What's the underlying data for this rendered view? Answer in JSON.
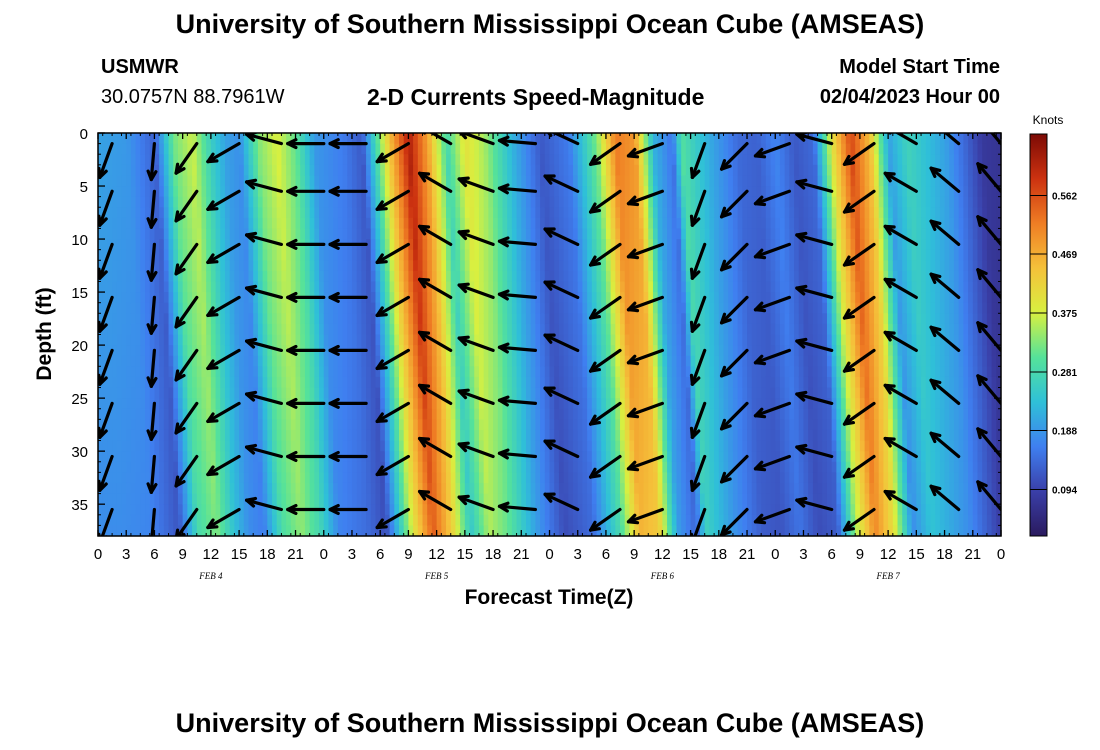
{
  "page": {
    "title_top": "University of Southern Mississippi Ocean Cube (AMSEAS)",
    "title_bottom": "University of Southern Mississippi Ocean Cube (AMSEAS)",
    "station_id": "USMWR",
    "station_coords": "30.0757N  88.7961W",
    "subtitle": "2-D Currents Speed-Magnitude",
    "model_start_label": "Model Start Time",
    "model_start_value": "02/04/2023 Hour 00"
  },
  "colors": {
    "scale": [
      "#2a1a5e",
      "#3a3fa8",
      "#3f7ff0",
      "#2fc0d8",
      "#55e29a",
      "#d8f040",
      "#f5c13a",
      "#ef7d24",
      "#cc3210",
      "#7c0a05"
    ],
    "arrow": "#000000",
    "background": "#ffffff"
  },
  "chart_data": {
    "type": "heatmap",
    "title": "2-D Currents Speed-Magnitude",
    "xlabel": "Forecast Time(Z)",
    "ylabel": "Depth (ft)",
    "x_tick_labels": [
      "0",
      "3",
      "6",
      "9",
      "12",
      "15",
      "18",
      "21",
      "0",
      "3",
      "6",
      "9",
      "12",
      "15",
      "18",
      "21",
      "0",
      "3",
      "6",
      "9",
      "12",
      "15",
      "18",
      "21",
      "0",
      "3",
      "6",
      "9",
      "12",
      "15",
      "18",
      "21",
      "0"
    ],
    "x_range_hours": [
      0,
      96
    ],
    "date_labels": [
      {
        "label": "FEB 4",
        "hour": 12
      },
      {
        "label": "FEB 5",
        "hour": 36
      },
      {
        "label": "FEB 6",
        "hour": 60
      },
      {
        "label": "FEB 7",
        "hour": 84
      }
    ],
    "y_ticks": [
      0,
      5,
      10,
      15,
      20,
      25,
      30,
      35
    ],
    "y_range_ft": [
      0,
      38
    ],
    "colorbar": {
      "label": "Knots",
      "ticks": [
        0.094,
        0.188,
        0.281,
        0.375,
        0.469,
        0.562
      ],
      "range": [
        0.02,
        0.66
      ]
    },
    "speed_by_hour_knots": [
      {
        "hour": 0,
        "speed": 0.2
      },
      {
        "hour": 3,
        "speed": 0.19
      },
      {
        "hour": 6,
        "speed": 0.13
      },
      {
        "hour": 8,
        "speed": 0.32
      },
      {
        "hour": 10,
        "speed": 0.37
      },
      {
        "hour": 12,
        "speed": 0.26
      },
      {
        "hour": 13.5,
        "speed": 0.2
      },
      {
        "hour": 15,
        "speed": 0.18
      },
      {
        "hour": 17,
        "speed": 0.33
      },
      {
        "hour": 19,
        "speed": 0.38
      },
      {
        "hour": 21,
        "speed": 0.31
      },
      {
        "hour": 23,
        "speed": 0.19
      },
      {
        "hour": 26,
        "speed": 0.16
      },
      {
        "hour": 28,
        "speed": 0.12
      },
      {
        "hour": 31,
        "speed": 0.45
      },
      {
        "hour": 33,
        "speed": 0.62
      },
      {
        "hour": 35,
        "speed": 0.48
      },
      {
        "hour": 37,
        "speed": 0.28
      },
      {
        "hour": 39,
        "speed": 0.4
      },
      {
        "hour": 41,
        "speed": 0.35
      },
      {
        "hour": 44,
        "speed": 0.22
      },
      {
        "hour": 47,
        "speed": 0.12
      },
      {
        "hour": 50,
        "speed": 0.16
      },
      {
        "hour": 53,
        "speed": 0.33
      },
      {
        "hour": 55,
        "speed": 0.52
      },
      {
        "hour": 57,
        "speed": 0.49
      },
      {
        "hour": 59,
        "speed": 0.22
      },
      {
        "hour": 61,
        "speed": 0.15
      },
      {
        "hour": 62,
        "speed": 0.3
      },
      {
        "hour": 65,
        "speed": 0.21
      },
      {
        "hour": 68,
        "speed": 0.14
      },
      {
        "hour": 70,
        "speed": 0.13
      },
      {
        "hour": 72,
        "speed": 0.17
      },
      {
        "hour": 74,
        "speed": 0.12
      },
      {
        "hour": 76,
        "speed": 0.14
      },
      {
        "hour": 78,
        "speed": 0.4
      },
      {
        "hour": 80,
        "speed": 0.57
      },
      {
        "hour": 82,
        "speed": 0.45
      },
      {
        "hour": 84,
        "speed": 0.2
      },
      {
        "hour": 86,
        "speed": 0.27
      },
      {
        "hour": 90,
        "speed": 0.2
      },
      {
        "hour": 94,
        "speed": 0.08
      },
      {
        "hour": 96,
        "speed": 0.07
      }
    ],
    "arrow_hours": [
      1.5,
      6,
      10.5,
      15,
      19.5,
      24,
      28.5,
      33,
      37.5,
      42,
      46.5,
      51,
      55.5,
      60,
      64.5,
      69,
      73.5,
      78,
      82.5,
      87,
      91.5,
      96
    ],
    "arrow_direction_deg_by_hour": [
      {
        "hour": 1.5,
        "dir": 250
      },
      {
        "hour": 6,
        "dir": 265
      },
      {
        "hour": 10.5,
        "dir": 235
      },
      {
        "hour": 15,
        "dir": 210
      },
      {
        "hour": 19.5,
        "dir": 165
      },
      {
        "hour": 24,
        "dir": 180
      },
      {
        "hour": 28.5,
        "dir": 180
      },
      {
        "hour": 33,
        "dir": 210
      },
      {
        "hour": 37.5,
        "dir": 150
      },
      {
        "hour": 42,
        "dir": 160
      },
      {
        "hour": 46.5,
        "dir": 175
      },
      {
        "hour": 51,
        "dir": 155
      },
      {
        "hour": 55.5,
        "dir": 215
      },
      {
        "hour": 60,
        "dir": 200
      },
      {
        "hour": 64.5,
        "dir": 250
      },
      {
        "hour": 69,
        "dir": 225
      },
      {
        "hour": 73.5,
        "dir": 200
      },
      {
        "hour": 78,
        "dir": 165
      },
      {
        "hour": 82.5,
        "dir": 215
      },
      {
        "hour": 87,
        "dir": 150
      },
      {
        "hour": 91.5,
        "dir": 140
      },
      {
        "hour": 96,
        "dir": 130
      }
    ],
    "arrow_depths_ft": [
      1,
      5.5,
      10.5,
      15.5,
      20.5,
      25.5,
      30.5,
      35.5
    ]
  }
}
